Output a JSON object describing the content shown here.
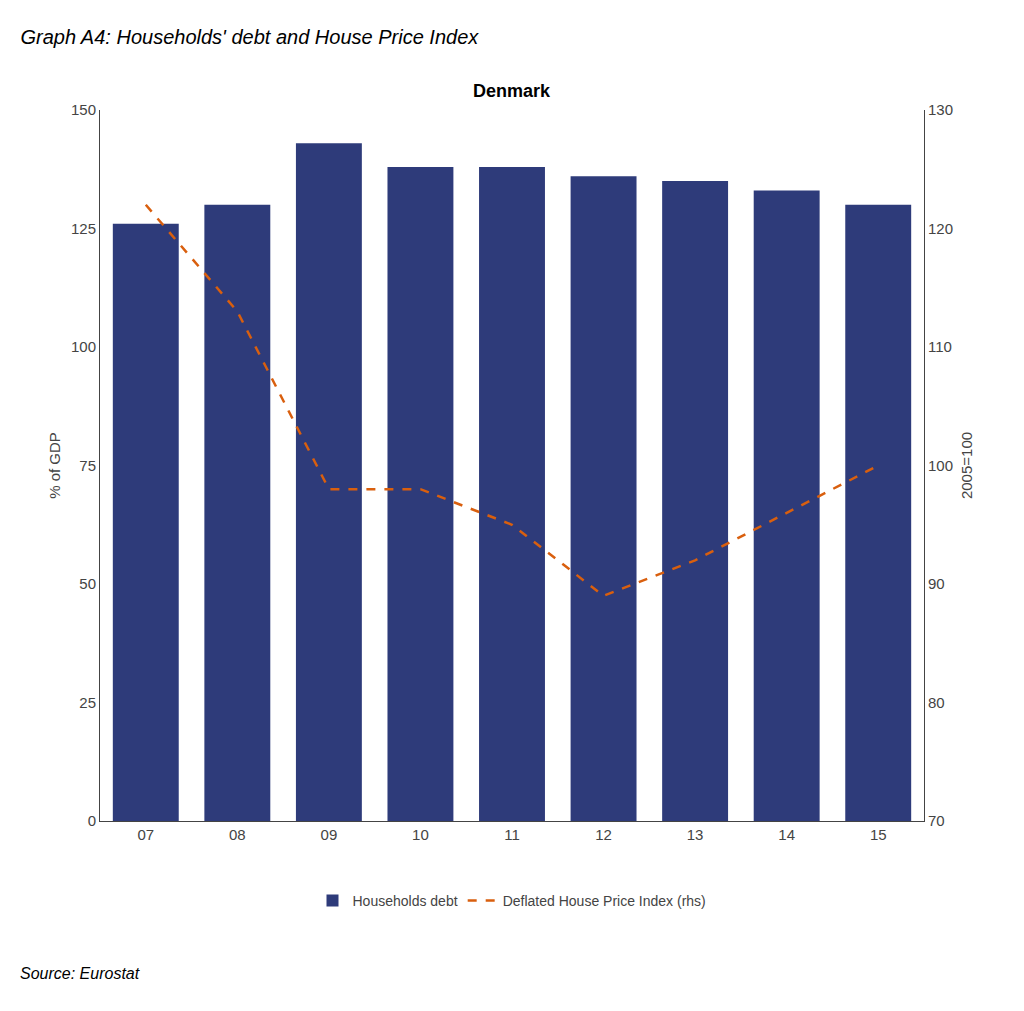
{
  "chart_data": {
    "type": "bar",
    "title": "Graph A4: Households' debt and House Price Index",
    "subtitle": "Denmark",
    "annotations": [
      "Source: Eurostat"
    ],
    "ylabel": "% of GDP",
    "y2label": "2005=100",
    "categories": [
      "07",
      "08",
      "09",
      "10",
      "11",
      "12",
      "13",
      "14",
      "15"
    ],
    "series": [
      {
        "name": "Households debt",
        "type": "bar",
        "color": "#2E3B7A",
        "values": [
          126,
          130,
          143,
          138,
          138,
          136,
          135,
          133,
          130
        ]
      },
      {
        "name": "Deflated House Price Index (rhs)",
        "type": "line",
        "axis": "y2",
        "color": "#D95F0E",
        "line_style": "dashed",
        "values": [
          122,
          113,
          98,
          98,
          95,
          89,
          92,
          96,
          100
        ]
      }
    ],
    "ylim": [
      0,
      150
    ],
    "yticks": [
      0,
      25,
      50,
      75,
      100,
      125,
      150
    ],
    "y2lim": [
      70,
      130
    ],
    "y2ticks": [
      70,
      80,
      90,
      100,
      110,
      120,
      130
    ],
    "grid": false,
    "legend": "bottom"
  }
}
